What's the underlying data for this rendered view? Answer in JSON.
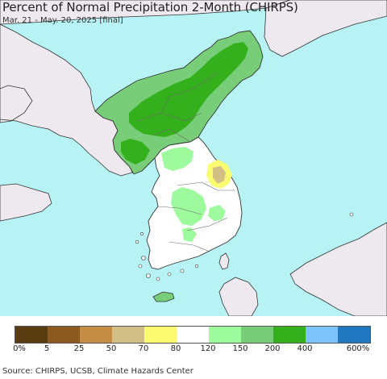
{
  "header": {
    "title": "Percent of Normal Precipitation 2-Month (CHIRPS)",
    "subtitle": "Mar. 21 - May. 20, 2025 [final]"
  },
  "legend": {
    "colors": [
      "#5a3c11",
      "#8b5a1e",
      "#c48c45",
      "#d2bf86",
      "#fbfb70",
      "#ffffff",
      "#9dfa9d",
      "#78ce78",
      "#35b01d",
      "#7cc4fa",
      "#1f78c0"
    ],
    "labels": [
      "0%",
      "5",
      "25",
      "50",
      "70",
      "80",
      "120",
      "150",
      "200",
      "400",
      "600%"
    ]
  },
  "footer": {
    "source": "Source: CHIRPS, UCSB, Climate Hazards Center"
  },
  "map_colors": {
    "ocean": "#b7f3f5",
    "outside_land": "#ede9ee",
    "normal": "#ffffff",
    "light_green": "#9dfa9d",
    "medium_green": "#78ce78",
    "dark_green": "#35b01d",
    "light_yellow": "#fbfb70",
    "tan": "#d2bf86"
  }
}
